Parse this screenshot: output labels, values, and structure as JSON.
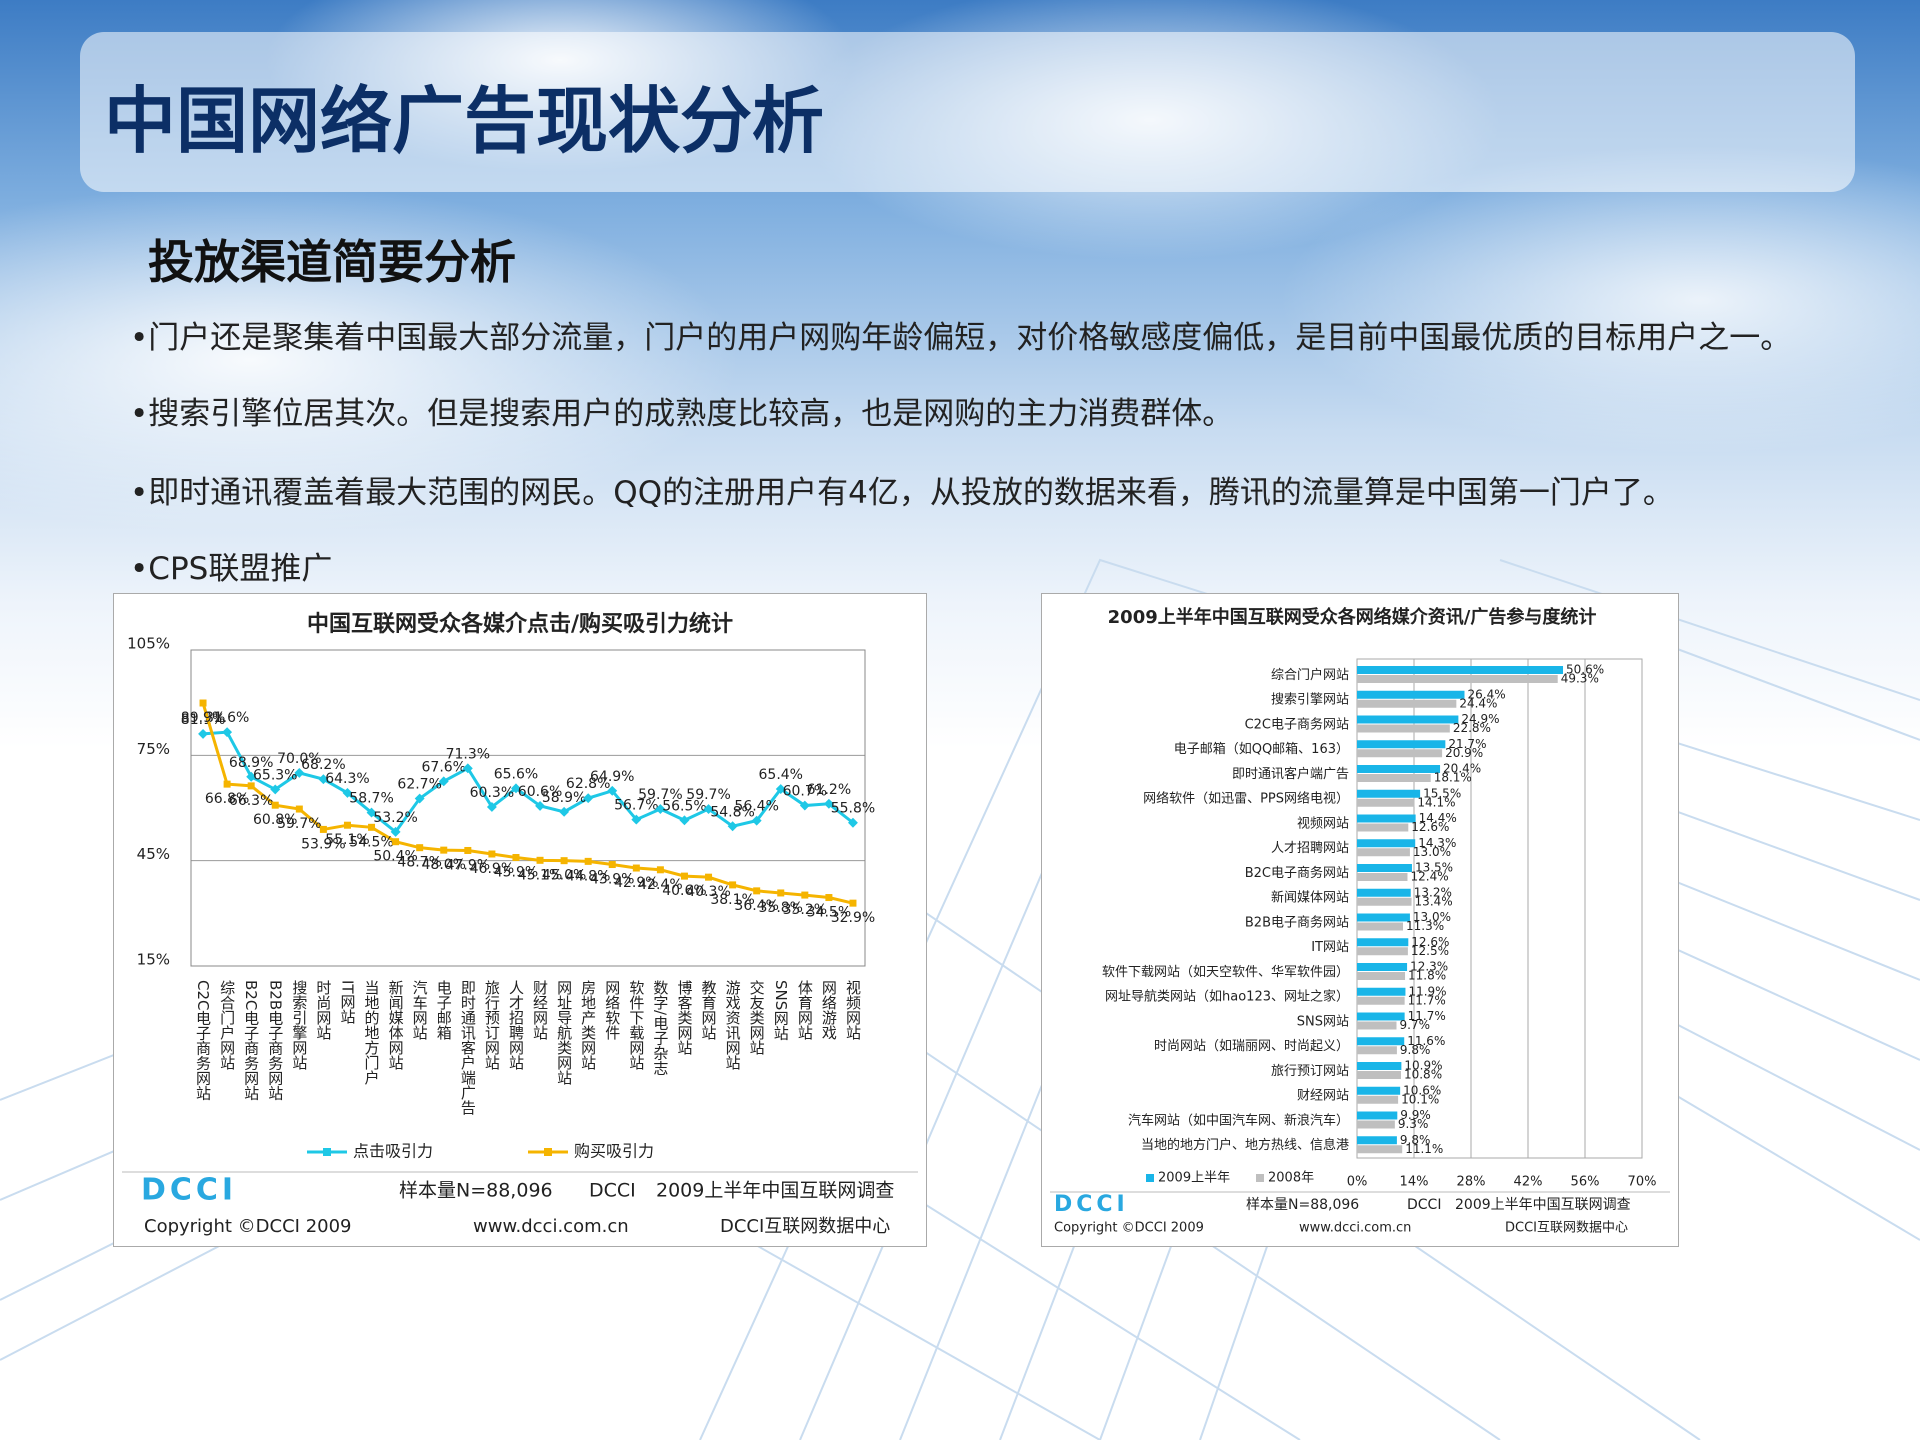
{
  "header": {
    "title": "中国网络广告现状分析"
  },
  "section": {
    "title": "投放渠道简要分析",
    "bullets": [
      "门户还是聚集着中国最大部分流量，门户的用户网购年龄偏短，对价格敏感度偏低，是目前中国最优质的目标用户之一。",
      "搜索引擎位居其次。但是搜索用户的成熟度比较高，也是网购的主力消费群体。",
      "即时通讯覆盖着最大范围的网民。QQ的注册用户有4亿，从投放的数据来看，腾讯的流量算是中国第一门户了。",
      "CPS联盟推广"
    ]
  },
  "chart_data": [
    {
      "type": "line",
      "title": "中国互联网受众各媒介点击/购买吸引力统计",
      "categories": [
        "C2C电子商务网站",
        "综合门户网站",
        "B2C电子商务网站",
        "B2B电子商务网站",
        "搜索引擎网站",
        "时尚网站",
        "IT网站",
        "当地的地方门户",
        "新闻媒体网站",
        "汽车网站",
        "电子邮箱",
        "即时通讯客户端广告",
        "旅行预订网站",
        "人才招聘网站",
        "财经网站",
        "网址导航类网站",
        "房地产类网站",
        "网络软件",
        "软件下载网站",
        "数字/电子杂志",
        "博客类网站",
        "教育网站",
        "游戏资讯网站",
        "交友类网站",
        "SNS网站",
        "体育网站",
        "网络游戏",
        "视频网站"
      ],
      "series": [
        {
          "name": "点击吸引力",
          "color": "#1ec8e6",
          "values": [
            81.1,
            81.6,
            68.9,
            65.3,
            70.0,
            68.2,
            64.3,
            58.7,
            53.2,
            62.7,
            67.6,
            71.3,
            60.3,
            65.6,
            60.6,
            58.9,
            62.8,
            64.9,
            56.7,
            59.7,
            56.5,
            59.7,
            54.8,
            56.4,
            65.4,
            60.7,
            61.2,
            55.8
          ],
          "value_labels": [
            "81.1%",
            "81.6%",
            "68.9%",
            "65.3%",
            "70.0%",
            "68.2%",
            "64.3%",
            "58.7%",
            "53.2%",
            "62.7%",
            "67.6%",
            "71.3%",
            "60.3%",
            "65.6%",
            "60.6%",
            "58.9%",
            "62.8%",
            "64.9%",
            "56.7%",
            "59.7%",
            "56.5%",
            "59.7%",
            "54.8%",
            "56.4%",
            "65.4%",
            "60.7%",
            "61.2%",
            "55.8%"
          ]
        },
        {
          "name": "购买吸引力",
          "color": "#f5b400",
          "values": [
            89.9,
            66.8,
            66.3,
            60.8,
            59.7,
            53.9,
            55.1,
            54.5,
            50.4,
            48.7,
            48.0,
            47.9,
            46.9,
            45.9,
            45.1,
            45.0,
            44.8,
            43.9,
            42.9,
            42.4,
            40.6,
            40.3,
            38.1,
            36.4,
            35.8,
            35.2,
            34.5,
            32.9
          ],
          "value_labels": [
            "89.9%",
            "66.8%",
            "66.3%",
            "60.8%",
            "59.7%",
            "53.9%",
            "55.1%",
            "54.5%",
            "50.4%",
            "48.7%",
            "48.0%",
            "47.9%",
            "46.9%",
            "45.9%",
            "45.1%",
            "45.0%",
            "44.8%",
            "43.9%",
            "42.9%",
            "42.4%",
            "40.6%",
            "40.3%",
            "38.1%",
            "36.4%",
            "35.8%",
            "35.2%",
            "34.5%",
            "32.9%"
          ]
        }
      ],
      "ylim": [
        15,
        105
      ],
      "yticks": [
        {
          "value": 15,
          "label": "15%"
        },
        {
          "value": 45,
          "label": "45%"
        },
        {
          "value": 75,
          "label": "75%"
        },
        {
          "value": 105,
          "label": "105%"
        }
      ],
      "grid": true,
      "footer": {
        "logo": "DCCI",
        "sample": "样本量N=88,096",
        "org": "DCCI",
        "survey": "2009上半年中国互联网调查",
        "copyright": "Copyright ©DCCI 2009",
        "url": "www.dcci.com.cn",
        "center": "DCCI互联网数据中心"
      }
    },
    {
      "type": "bar",
      "orientation": "horizontal",
      "title": "2009上半年中国互联网受众各网络媒介资讯/广告参与度统计",
      "categories": [
        "综合门户网站",
        "搜索引擎网站",
        "C2C电子商务网站",
        "电子邮箱（如QQ邮箱、163）",
        "即时通讯客户端广告",
        "网络软件（如迅雷、PPS网络电视）",
        "视频网站",
        "人才招聘网站",
        "B2C电子商务网站",
        "新闻媒体网站",
        "B2B电子商务网站",
        "IT网站",
        "软件下载网站（如天空软件、华军软件园）",
        "网址导航类网站（如hao123、网址之家）",
        "SNS网站",
        "时尚网站（如瑞丽网、时尚起义）",
        "旅行预订网站",
        "财经网站",
        "汽车网站（如中国汽车网、新浪汽车）",
        "当地的地方门户、地方热线、信息港"
      ],
      "series": [
        {
          "name": "2009上半年",
          "color": "#19b5e8",
          "values": [
            50.6,
            26.4,
            24.9,
            21.7,
            20.4,
            15.5,
            14.4,
            14.3,
            13.5,
            13.2,
            13.0,
            12.6,
            12.3,
            11.9,
            11.7,
            11.6,
            10.9,
            10.6,
            9.9,
            9.8
          ],
          "value_labels": [
            "50.6%",
            "26.4%",
            "24.9%",
            "21.7%",
            "20.4%",
            "15.5%",
            "14.4%",
            "14.3%",
            "13.5%",
            "13.2%",
            "13.0%",
            "12.6%",
            "12.3%",
            "11.9%",
            "11.7%",
            "11.6%",
            "10.9%",
            "10.6%",
            "9.9%",
            "9.8%"
          ]
        },
        {
          "name": "2008年",
          "color": "#bfbfbf",
          "values": [
            49.3,
            24.4,
            22.8,
            20.9,
            18.1,
            14.1,
            12.6,
            13.0,
            12.4,
            13.4,
            11.3,
            12.5,
            11.8,
            11.7,
            9.7,
            9.8,
            10.8,
            10.1,
            9.3,
            11.1
          ],
          "value_labels": [
            "49.3%",
            "24.4%",
            "22.8%",
            "20.9%",
            "18.1%",
            "14.1%",
            "12.6%",
            "13.0%",
            "12.4%",
            "13.4%",
            "11.3%",
            "12.5%",
            "11.8%",
            "11.7%",
            "9.7%",
            "9.8%",
            "10.8%",
            "10.1%",
            "9.3%",
            "11.1%"
          ]
        }
      ],
      "xlim": [
        0,
        70
      ],
      "xticks": [
        {
          "value": 0,
          "label": "0%"
        },
        {
          "value": 14,
          "label": "14%"
        },
        {
          "value": 28,
          "label": "28%"
        },
        {
          "value": 42,
          "label": "42%"
        },
        {
          "value": 56,
          "label": "56%"
        },
        {
          "value": 70,
          "label": "70%"
        }
      ],
      "grid": true,
      "footer": {
        "logo": "DCCI",
        "sample": "样本量N=88,096",
        "org": "DCCI",
        "survey": "2009上半年中国互联网调查",
        "copyright": "Copyright ©DCCI 2009",
        "url": "www.dcci.com.cn",
        "center": "DCCI互联网数据中心"
      }
    }
  ]
}
